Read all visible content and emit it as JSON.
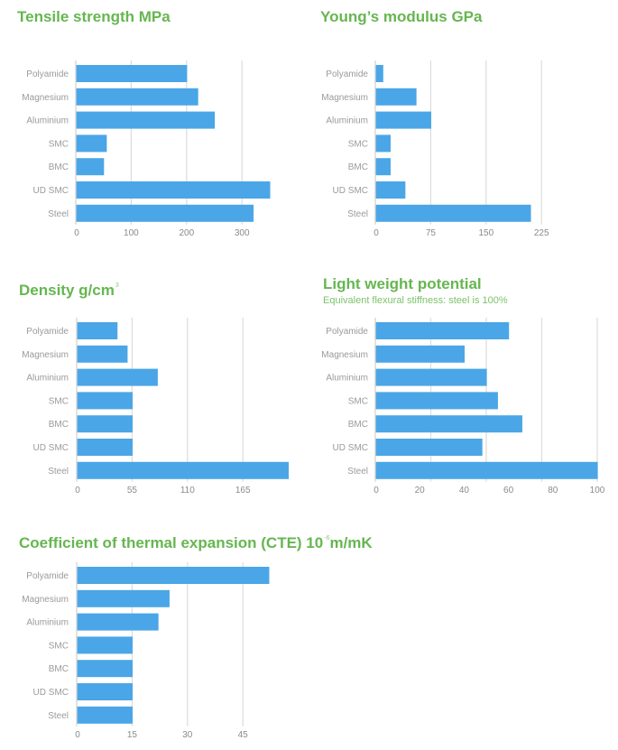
{
  "chart_data": [
    {
      "id": "tensile",
      "type": "bar",
      "orientation": "horizontal",
      "title": "Tensile strength MPa",
      "title_superscript": "",
      "title_suffix": "",
      "subtitle": "",
      "categories": [
        "Polyamide",
        "Magnesium",
        "Aluminium",
        "SMC",
        "BMC",
        "UD SMC",
        "Steel"
      ],
      "values": [
        200,
        220,
        250,
        55,
        50,
        350,
        320
      ],
      "xticks": [
        0,
        100,
        200,
        300
      ],
      "gridlines": [
        100,
        200,
        300
      ],
      "xlim": [
        0,
        350
      ],
      "xlabel": "",
      "ylabel": "",
      "bar_color": "#4aa6e6",
      "grid": true,
      "legend": "none"
    },
    {
      "id": "youngs",
      "type": "bar",
      "orientation": "horizontal",
      "title": "Young’s modulus GPa",
      "title_superscript": "",
      "title_suffix": "",
      "subtitle": "",
      "categories": [
        "Polyamide",
        "Magnesium",
        "Aluminium",
        "SMC",
        "BMC",
        "UD SMC",
        "Steel"
      ],
      "values": [
        10,
        55,
        75,
        20,
        20,
        40,
        210
      ],
      "xticks": [
        0,
        75,
        150,
        225
      ],
      "gridlines": [
        75,
        150,
        225
      ],
      "xlim": [
        0,
        225
      ],
      "xlabel": "",
      "ylabel": "",
      "bar_color": "#4aa6e6",
      "grid": true,
      "legend": "none"
    },
    {
      "id": "density",
      "type": "bar",
      "orientation": "horizontal",
      "title": "Density g/cm",
      "title_superscript": "3",
      "title_suffix": "",
      "subtitle": "",
      "categories": [
        "Polyamide",
        "Magnesium",
        "Aluminium",
        "SMC",
        "BMC",
        "UD SMC",
        "Steel"
      ],
      "values": [
        40,
        50,
        80,
        55,
        55,
        55,
        210
      ],
      "xticks": [
        0,
        55,
        110,
        165
      ],
      "gridlines": [
        55,
        110,
        165
      ],
      "xlim": [
        0,
        210
      ],
      "xlabel": "",
      "ylabel": "",
      "bar_color": "#4aa6e6",
      "grid": true,
      "legend": "none"
    },
    {
      "id": "lightweight",
      "type": "bar",
      "orientation": "horizontal",
      "title": "Light weight potential",
      "title_superscript": "",
      "title_suffix": "",
      "subtitle": "Equivalent flexural stiffness: steel is 100%",
      "categories": [
        "Polyamide",
        "Magnesium",
        "Aluminium",
        "SMC",
        "BMC",
        "UD SMC",
        "Steel"
      ],
      "values": [
        60,
        40,
        50,
        55,
        66,
        48,
        100
      ],
      "xticks": [
        0,
        20,
        40,
        60,
        80,
        100
      ],
      "gridlines": [
        25,
        50,
        75,
        100
      ],
      "xlim": [
        0,
        100
      ],
      "xlabel": "",
      "ylabel": "",
      "bar_color": "#4aa6e6",
      "grid": true,
      "legend": "none"
    },
    {
      "id": "cte",
      "type": "bar",
      "orientation": "horizontal",
      "title": "Coefficient of thermal expansion (CTE) 10",
      "title_superscript": "-6",
      "title_suffix": "m/mK",
      "subtitle": "",
      "categories": [
        "Polyamide",
        "Magnesium",
        "Aluminium",
        "SMC",
        "BMC",
        "UD SMC",
        "Steel"
      ],
      "values": [
        52,
        25,
        22,
        15,
        15,
        15,
        15
      ],
      "xticks": [
        0,
        15,
        30,
        45
      ],
      "gridlines": [
        15,
        30,
        45
      ],
      "xlim": [
        0,
        52
      ],
      "xlabel": "",
      "ylabel": "",
      "bar_color": "#4aa6e6",
      "grid": true,
      "legend": "none"
    }
  ]
}
